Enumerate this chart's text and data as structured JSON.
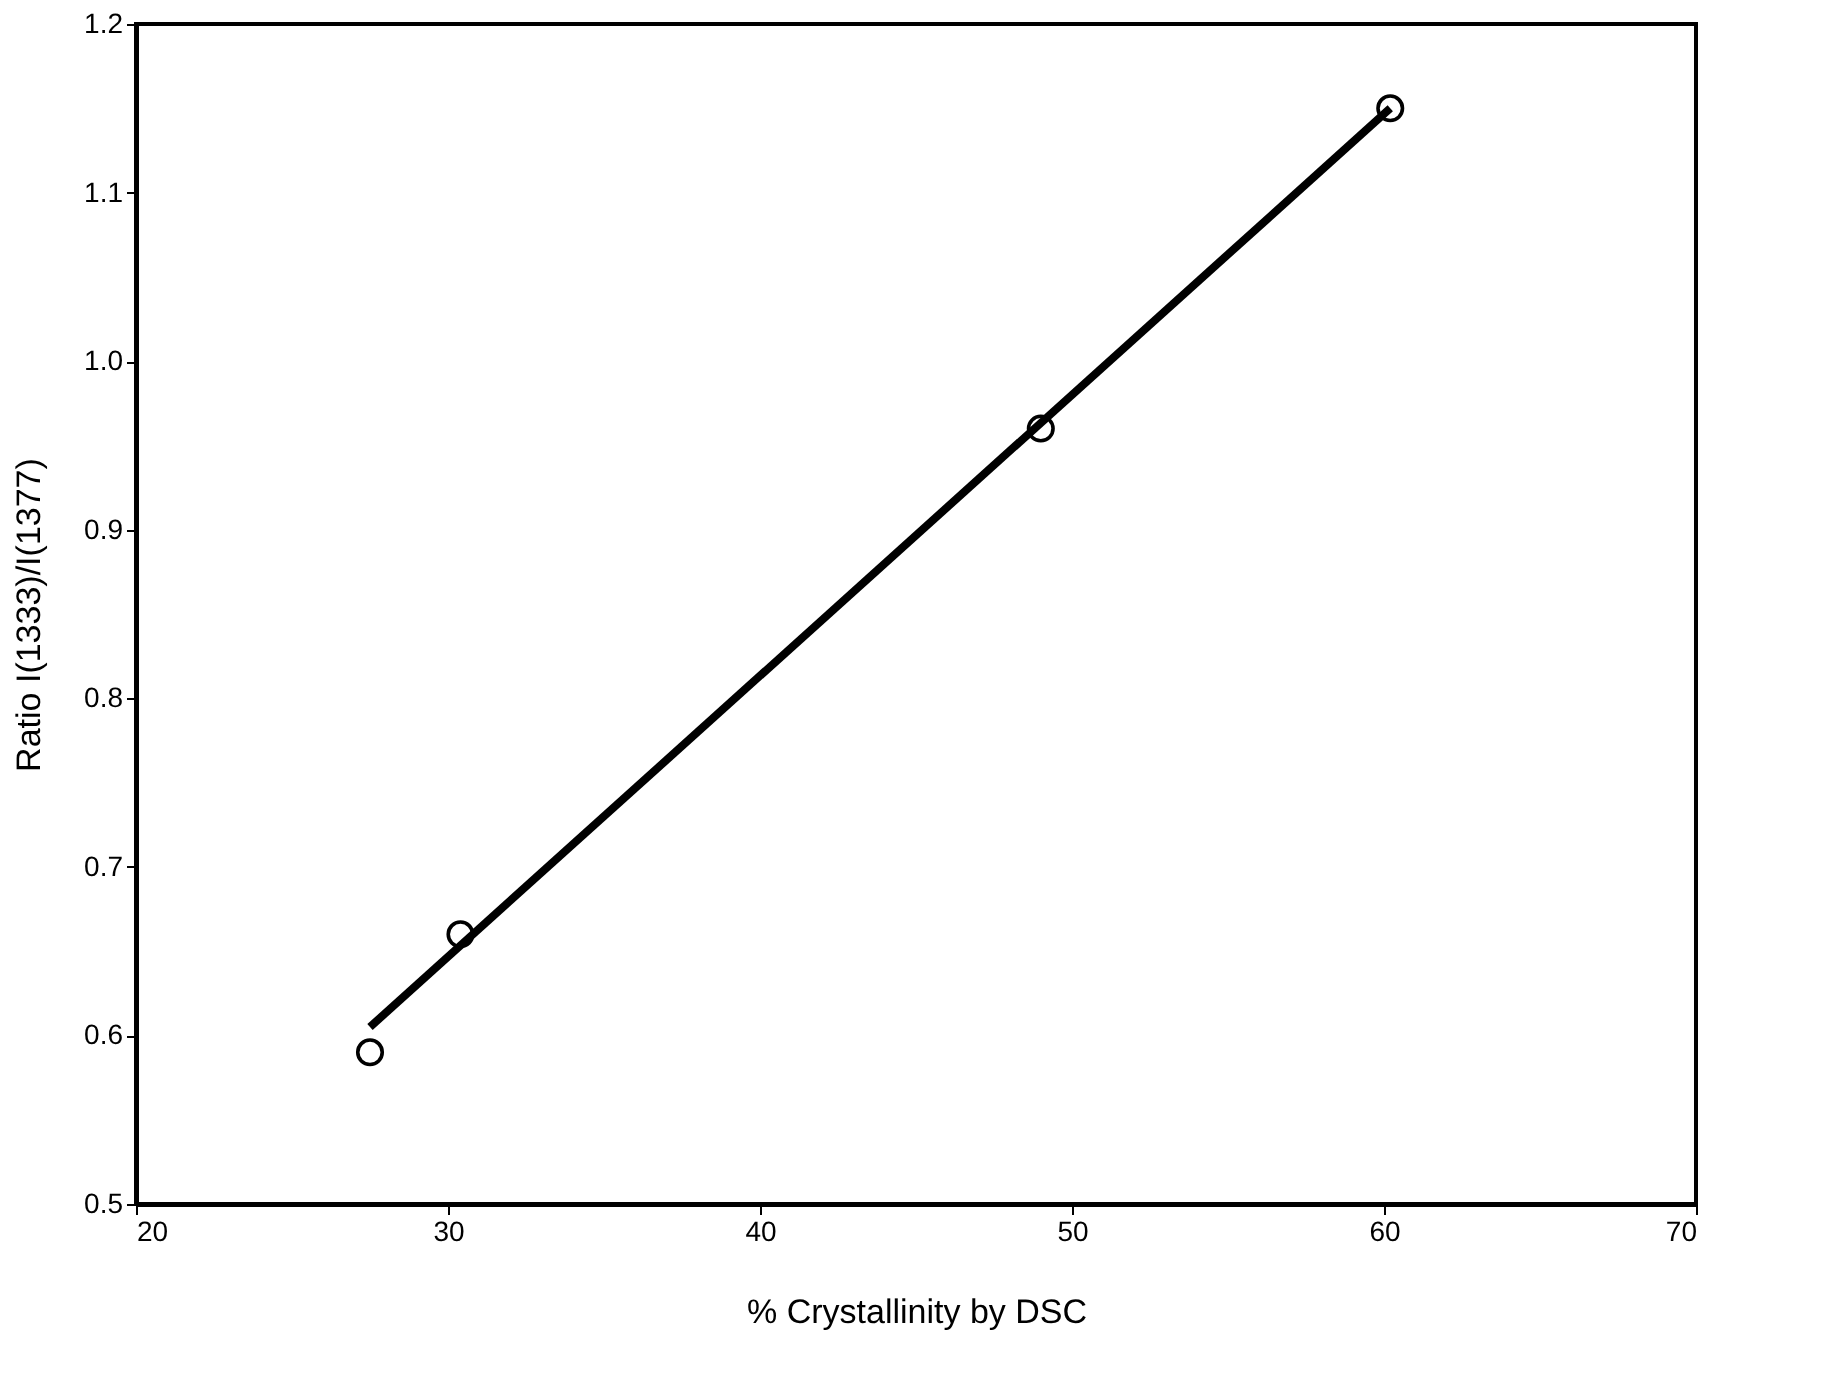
{
  "chart_data": {
    "type": "scatter",
    "xlabel": "% Crystallinity by DSC",
    "ylabel": "Ratio I(1333)/I(1377)",
    "xlim": [
      20,
      70
    ],
    "xticks": [
      20,
      30,
      40,
      50,
      60,
      70
    ],
    "ylim": [
      0.5,
      1.2
    ],
    "yticks": [
      {
        "value": 0.5,
        "label": "0.5"
      },
      {
        "value": 0.6,
        "label": "0.6"
      },
      {
        "value": 0.7,
        "label": "0.7"
      },
      {
        "value": 0.8,
        "label": "0.8"
      },
      {
        "value": 0.9,
        "label": "0.9"
      },
      {
        "value": 1.0,
        "label": "1.0"
      },
      {
        "value": 1.1,
        "label": "1.1"
      },
      {
        "value": 1.2,
        "label": "1.2"
      }
    ],
    "grid": false,
    "marker": "circle",
    "series": [
      {
        "color": "#000000",
        "x": [
          27.5,
          30.4,
          49,
          60.2
        ],
        "values": [
          0.59,
          0.66,
          0.96,
          1.15
        ]
      },
      {
        "type": "line",
        "color": "#000000",
        "marker": "none",
        "line_style": "solid",
        "x": [
          27.5,
          60.2
        ],
        "values": [
          0.605,
          1.15
        ]
      }
    ]
  }
}
